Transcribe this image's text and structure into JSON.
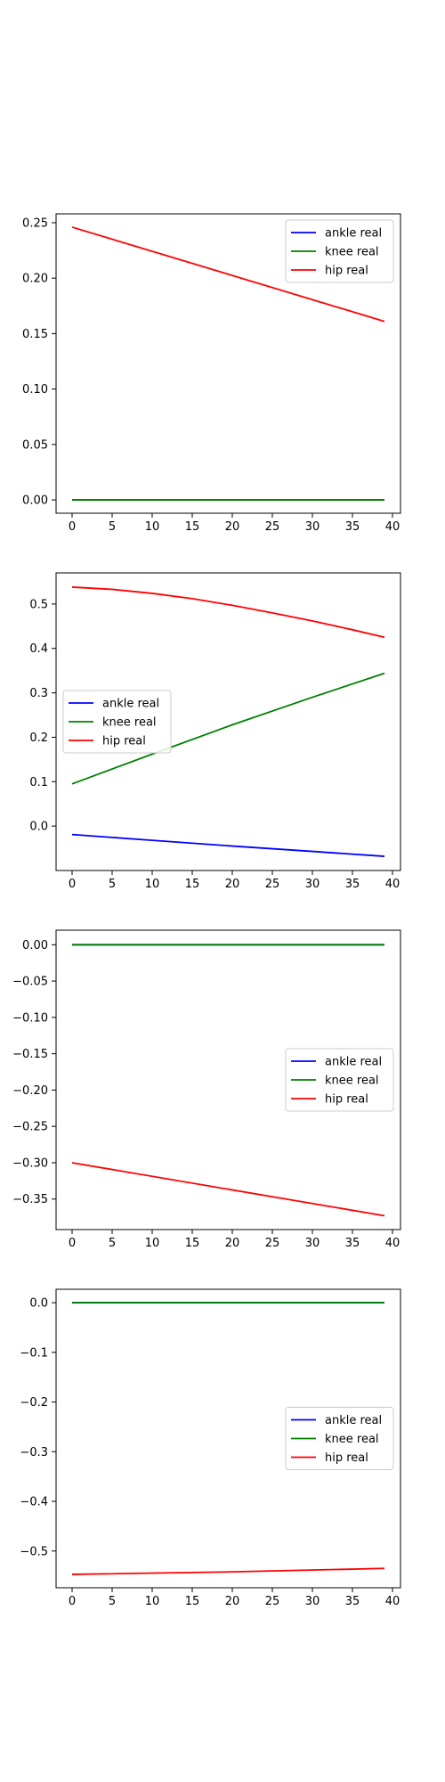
{
  "chart_data": [
    {
      "type": "line",
      "xlim": [
        -2,
        41
      ],
      "ylim": [
        -0.012,
        0.258
      ],
      "xticks": [
        0,
        5,
        10,
        15,
        20,
        25,
        30,
        35,
        40
      ],
      "yticks": [
        0.0,
        0.05,
        0.1,
        0.15,
        0.2,
        0.25
      ],
      "ytick_labels": [
        "0.00",
        "0.05",
        "0.10",
        "0.15",
        "0.20",
        "0.25"
      ],
      "legend": "upper right",
      "grid": false,
      "series": [
        {
          "name": "ankle real",
          "color": "#0000ff",
          "x": [
            0,
            39
          ],
          "y": [
            0.0,
            0.0
          ]
        },
        {
          "name": "knee real",
          "color": "#008000",
          "x": [
            0,
            39
          ],
          "y": [
            0.0,
            0.0
          ]
        },
        {
          "name": "hip real",
          "color": "#ff0000",
          "x": [
            0,
            39
          ],
          "y": [
            0.246,
            0.161
          ]
        }
      ]
    },
    {
      "type": "line",
      "xlim": [
        -2,
        41
      ],
      "ylim": [
        -0.1,
        0.57
      ],
      "xticks": [
        0,
        5,
        10,
        15,
        20,
        25,
        30,
        35,
        40
      ],
      "yticks": [
        0.0,
        0.1,
        0.2,
        0.3,
        0.4,
        0.5
      ],
      "ytick_labels": [
        "0.0",
        "0.1",
        "0.2",
        "0.3",
        "0.4",
        "0.5"
      ],
      "legend": "center left",
      "grid": false,
      "series": [
        {
          "name": "ankle real",
          "color": "#0000ff",
          "x": [
            0,
            10,
            20,
            30,
            39
          ],
          "y": [
            -0.019,
            -0.032,
            -0.045,
            -0.057,
            -0.068
          ]
        },
        {
          "name": "knee real",
          "color": "#008000",
          "x": [
            0,
            10,
            20,
            30,
            39
          ],
          "y": [
            0.095,
            0.162,
            0.228,
            0.29,
            0.344
          ]
        },
        {
          "name": "hip real",
          "color": "#ff0000",
          "x": [
            0,
            5,
            10,
            15,
            20,
            25,
            30,
            35,
            39
          ],
          "y": [
            0.538,
            0.533,
            0.524,
            0.512,
            0.497,
            0.48,
            0.462,
            0.442,
            0.425
          ]
        }
      ]
    },
    {
      "type": "line",
      "xlim": [
        -2,
        41
      ],
      "ylim": [
        -0.392,
        0.02
      ],
      "xticks": [
        0,
        5,
        10,
        15,
        20,
        25,
        30,
        35,
        40
      ],
      "yticks": [
        0.0,
        -0.05,
        -0.1,
        -0.15,
        -0.2,
        -0.25,
        -0.3,
        -0.35
      ],
      "ytick_labels": [
        "0.00",
        "−0.05",
        "−0.10",
        "−0.15",
        "−0.20",
        "−0.25",
        "−0.30",
        "−0.35"
      ],
      "legend": "center right",
      "grid": false,
      "series": [
        {
          "name": "ankle real",
          "color": "#0000ff",
          "x": [
            0,
            39
          ],
          "y": [
            0.0,
            0.0
          ]
        },
        {
          "name": "knee real",
          "color": "#008000",
          "x": [
            0,
            39
          ],
          "y": [
            0.0,
            0.0
          ]
        },
        {
          "name": "hip real",
          "color": "#ff0000",
          "x": [
            0,
            39
          ],
          "y": [
            -0.3,
            -0.373
          ]
        }
      ]
    },
    {
      "type": "line",
      "xlim": [
        -2,
        41
      ],
      "ylim": [
        -0.574,
        0.027
      ],
      "xticks": [
        0,
        5,
        10,
        15,
        20,
        25,
        30,
        35,
        40
      ],
      "yticks": [
        0.0,
        -0.1,
        -0.2,
        -0.3,
        -0.4,
        -0.5
      ],
      "ytick_labels": [
        "0.0",
        "−0.1",
        "−0.2",
        "−0.3",
        "−0.4",
        "−0.5"
      ],
      "legend": "center right",
      "grid": false,
      "series": [
        {
          "name": "ankle real",
          "color": "#0000ff",
          "x": [
            0,
            39
          ],
          "y": [
            0.0,
            0.0
          ]
        },
        {
          "name": "knee real",
          "color": "#008000",
          "x": [
            0,
            39
          ],
          "y": [
            0.0,
            0.0
          ]
        },
        {
          "name": "hip real",
          "color": "#ff0000",
          "x": [
            0,
            20,
            39
          ],
          "y": [
            -0.547,
            -0.542,
            -0.535
          ]
        }
      ]
    }
  ]
}
